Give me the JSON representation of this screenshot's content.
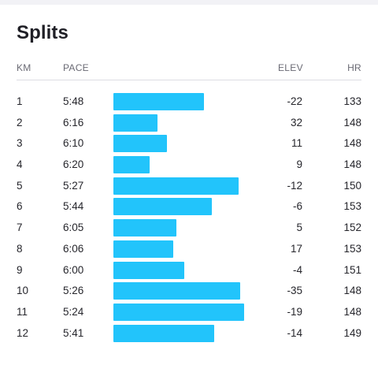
{
  "title": "Splits",
  "headers": {
    "km": "KM",
    "pace": "PACE",
    "elev": "ELEV",
    "hr": "HR"
  },
  "colors": {
    "bar": "#22c4fb"
  },
  "splits": [
    {
      "km": "1",
      "pace": "5:48",
      "elev": "-22",
      "hr": "133",
      "pace_bar_fraction": 0.69
    },
    {
      "km": "2",
      "pace": "6:16",
      "elev": "32",
      "hr": "148",
      "pace_bar_fraction": 0.34
    },
    {
      "km": "3",
      "pace": "6:10",
      "elev": "11",
      "hr": "148",
      "pace_bar_fraction": 0.41
    },
    {
      "km": "4",
      "pace": "6:20",
      "elev": "9",
      "hr": "148",
      "pace_bar_fraction": 0.28
    },
    {
      "km": "5",
      "pace": "5:27",
      "elev": "-12",
      "hr": "150",
      "pace_bar_fraction": 0.96
    },
    {
      "km": "6",
      "pace": "5:44",
      "elev": "-6",
      "hr": "153",
      "pace_bar_fraction": 0.75
    },
    {
      "km": "7",
      "pace": "6:05",
      "elev": "5",
      "hr": "152",
      "pace_bar_fraction": 0.48
    },
    {
      "km": "8",
      "pace": "6:06",
      "elev": "17",
      "hr": "153",
      "pace_bar_fraction": 0.46
    },
    {
      "km": "9",
      "pace": "6:00",
      "elev": "-4",
      "hr": "151",
      "pace_bar_fraction": 0.54
    },
    {
      "km": "10",
      "pace": "5:26",
      "elev": "-35",
      "hr": "148",
      "pace_bar_fraction": 0.97
    },
    {
      "km": "11",
      "pace": "5:24",
      "elev": "-19",
      "hr": "148",
      "pace_bar_fraction": 1.0
    },
    {
      "km": "12",
      "pace": "5:41",
      "elev": "-14",
      "hr": "149",
      "pace_bar_fraction": 0.77
    }
  ]
}
